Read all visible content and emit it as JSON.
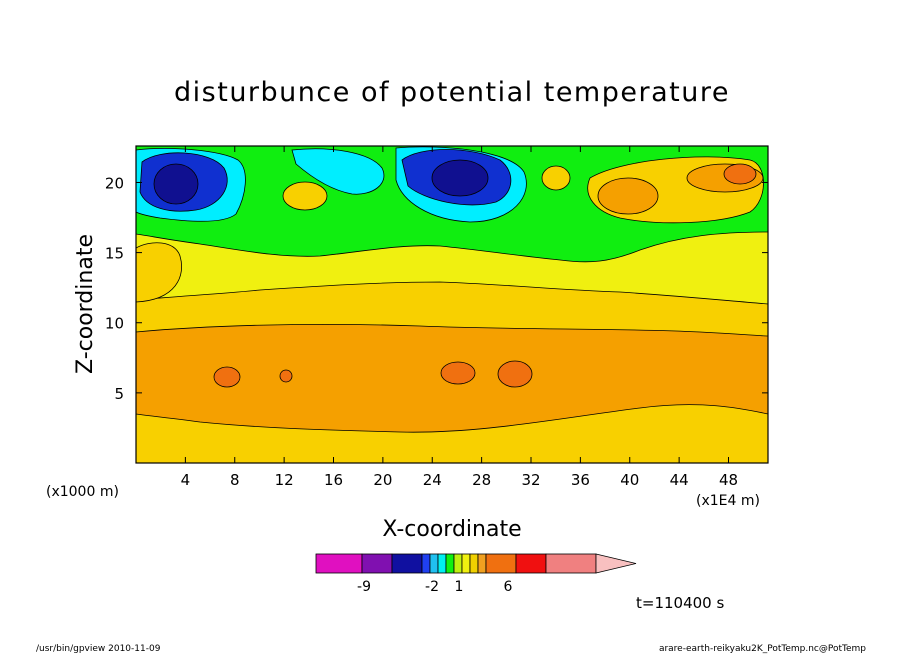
{
  "chart_data": {
    "type": "heatmap",
    "title": "disturbunce of potential temperature",
    "xlabel": "X-coordinate",
    "ylabel": "Z-coordinate",
    "x_scale_note": "(x1E4 m)",
    "y_scale_note": "(x1000 m)",
    "x_ticks": [
      "4",
      "8",
      "12",
      "16",
      "20",
      "24",
      "28",
      "32",
      "36",
      "40",
      "44",
      "48"
    ],
    "x_tick_values": [
      4,
      8,
      12,
      16,
      20,
      24,
      28,
      32,
      36,
      40,
      44,
      48
    ],
    "y_ticks": [
      "5",
      "10",
      "15",
      "20"
    ],
    "y_tick_values": [
      5,
      10,
      15,
      20
    ],
    "xlim": [
      0,
      51.2
    ],
    "ylim": [
      0,
      22.6
    ],
    "grid": false,
    "colorbar": {
      "colors": [
        "#e010c0",
        "#8010b0",
        "#1010a0",
        "#2040f0",
        "#20c0f0",
        "#00f0f0",
        "#10f010",
        "#c0f010",
        "#f0f010",
        "#f0d000",
        "#f0a020",
        "#f07010",
        "#f01010",
        "#f08080",
        "#f8c0c0"
      ],
      "tick_labels": [
        "-9",
        "-2",
        "1",
        "6"
      ]
    },
    "time_label": "t=110400 s"
  },
  "footer": {
    "left": "/usr/bin/gpview  2010-11-09",
    "right": "arare-earth-reikyaku2K_PotTemp.nc@PotTemp"
  }
}
